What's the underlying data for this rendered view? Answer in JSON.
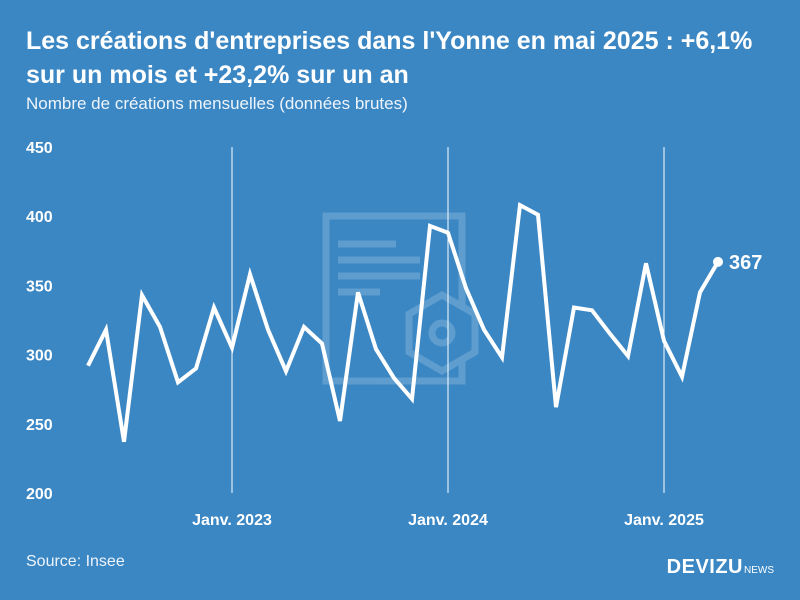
{
  "header": {
    "title": "Les créations d'entreprises dans l'Yonne en mai 2025 : +6,1% sur un mois et +23,2% sur un an",
    "subtitle": "Nombre de créations mensuelles (données brutes)"
  },
  "footer": {
    "source": "Source: Insee",
    "brand": "DEVIZU",
    "brand_suffix": "NEWS"
  },
  "colors": {
    "background": "#3b87c4",
    "line": "#ffffff"
  },
  "watermark_icon": "document-hexagon-icon",
  "chart_data": {
    "type": "line",
    "title": "Les créations d'entreprises dans l'Yonne en mai 2025 : +6,1% sur un mois et +23,2% sur un an",
    "subtitle": "Nombre de créations mensuelles (données brutes)",
    "xlabel": "",
    "ylabel": "",
    "ylim": [
      200,
      450
    ],
    "yticks": [
      200,
      250,
      300,
      350,
      400,
      450
    ],
    "x_range": [
      "2022-04",
      "2025-08"
    ],
    "x_tick_labels": [
      {
        "label": "Janv. 2023",
        "month": "2023-01"
      },
      {
        "label": "Janv. 2024",
        "month": "2024-01"
      },
      {
        "label": "Janv. 2025",
        "month": "2025-01"
      }
    ],
    "gridlines": "vertical at year starts",
    "series": [
      {
        "x": [
          "2022-05",
          "2022-06",
          "2022-07",
          "2022-08",
          "2022-09",
          "2022-10",
          "2022-11",
          "2022-12",
          "2023-01",
          "2023-02",
          "2023-03",
          "2023-04",
          "2023-05",
          "2023-06",
          "2023-07",
          "2023-08",
          "2023-09",
          "2023-10",
          "2023-11",
          "2023-12",
          "2024-01",
          "2024-02",
          "2024-03",
          "2024-04",
          "2024-05",
          "2024-06",
          "2024-07",
          "2024-08",
          "2024-09",
          "2024-10",
          "2024-11",
          "2024-12",
          "2025-01",
          "2025-02",
          "2025-03",
          "2025-04",
          "2025-05"
        ],
        "values": [
          292,
          318,
          237,
          343,
          320,
          280,
          290,
          334,
          305,
          358,
          318,
          288,
          320,
          308,
          252,
          345,
          304,
          283,
          268,
          393,
          388,
          348,
          318,
          298,
          408,
          401,
          262,
          334,
          332,
          315,
          299,
          366,
          310,
          284,
          345,
          367,
          null
        ],
        "end_label": "367"
      }
    ]
  }
}
